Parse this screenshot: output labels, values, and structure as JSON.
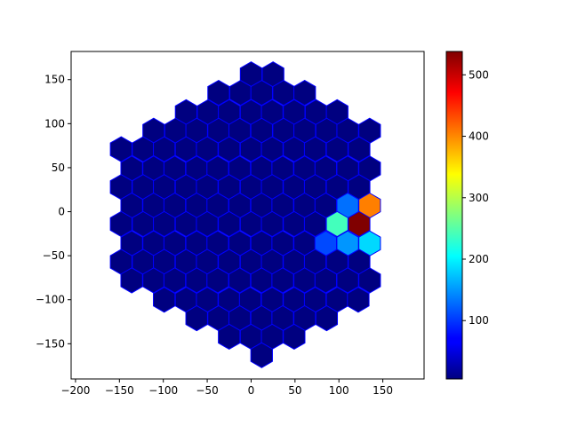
{
  "chart_data": {
    "type": "heatmap",
    "title": "",
    "xlabel": "",
    "ylabel": "",
    "xlim": [
      -205,
      197
    ],
    "ylim": [
      -190,
      182
    ],
    "xticks": [
      -200,
      -150,
      -100,
      -50,
      0,
      50,
      100,
      150
    ],
    "yticks": [
      -150,
      -100,
      -50,
      0,
      50,
      100,
      150
    ],
    "xtick_labels": [
      "−200",
      "−150",
      "−100",
      "−50",
      "0",
      "50",
      "100",
      "150"
    ],
    "ytick_labels": [
      "−150",
      "−100",
      "−50",
      "0",
      "50",
      "100",
      "150"
    ],
    "grid": false,
    "hex": {
      "pitch": 24.6,
      "row_height": 21.3,
      "edge_color": "#0000ff",
      "default_value": 5
    },
    "rows": [
      {
        "y": 156,
        "x_first": 0,
        "count": 2
      },
      {
        "y": 135,
        "x_first": -37,
        "count": 5
      },
      {
        "y": 113,
        "x_first": -74,
        "count": 8
      },
      {
        "y": 92,
        "x_first": -111,
        "count": 11
      },
      {
        "y": 71,
        "x_first": -148,
        "count": 12
      },
      {
        "y": 49,
        "x_first": -136,
        "count": 12
      },
      {
        "y": 28,
        "x_first": -148,
        "count": 12
      },
      {
        "y": 7,
        "x_first": -136,
        "count": 12
      },
      {
        "y": -14,
        "x_first": -148,
        "count": 12
      },
      {
        "y": -36,
        "x_first": -136,
        "count": 12
      },
      {
        "y": -57,
        "x_first": -148,
        "count": 12
      },
      {
        "y": -78,
        "x_first": -136,
        "count": 12
      },
      {
        "y": -100,
        "x_first": -99,
        "count": 10
      },
      {
        "y": -121,
        "x_first": -62,
        "count": 7
      },
      {
        "y": -142,
        "x_first": -25,
        "count": 4
      },
      {
        "y": -163,
        "x_first": 12,
        "count": 1
      }
    ],
    "hot_cells": [
      {
        "x": 111,
        "y": 7,
        "value": 130
      },
      {
        "x": 136,
        "y": 7,
        "value": 405
      },
      {
        "x": 99,
        "y": -14,
        "value": 240
      },
      {
        "x": 124,
        "y": -14,
        "value": 538
      },
      {
        "x": 86,
        "y": -36,
        "value": 110
      },
      {
        "x": 111,
        "y": -36,
        "value": 150
      },
      {
        "x": 136,
        "y": -36,
        "value": 185
      }
    ],
    "colorbar": {
      "colormap": "jet",
      "vmin": 5,
      "vmax": 538,
      "ticks": [
        100,
        200,
        300,
        400,
        500
      ],
      "tick_labels": [
        "100",
        "200",
        "300",
        "400",
        "500"
      ]
    }
  }
}
